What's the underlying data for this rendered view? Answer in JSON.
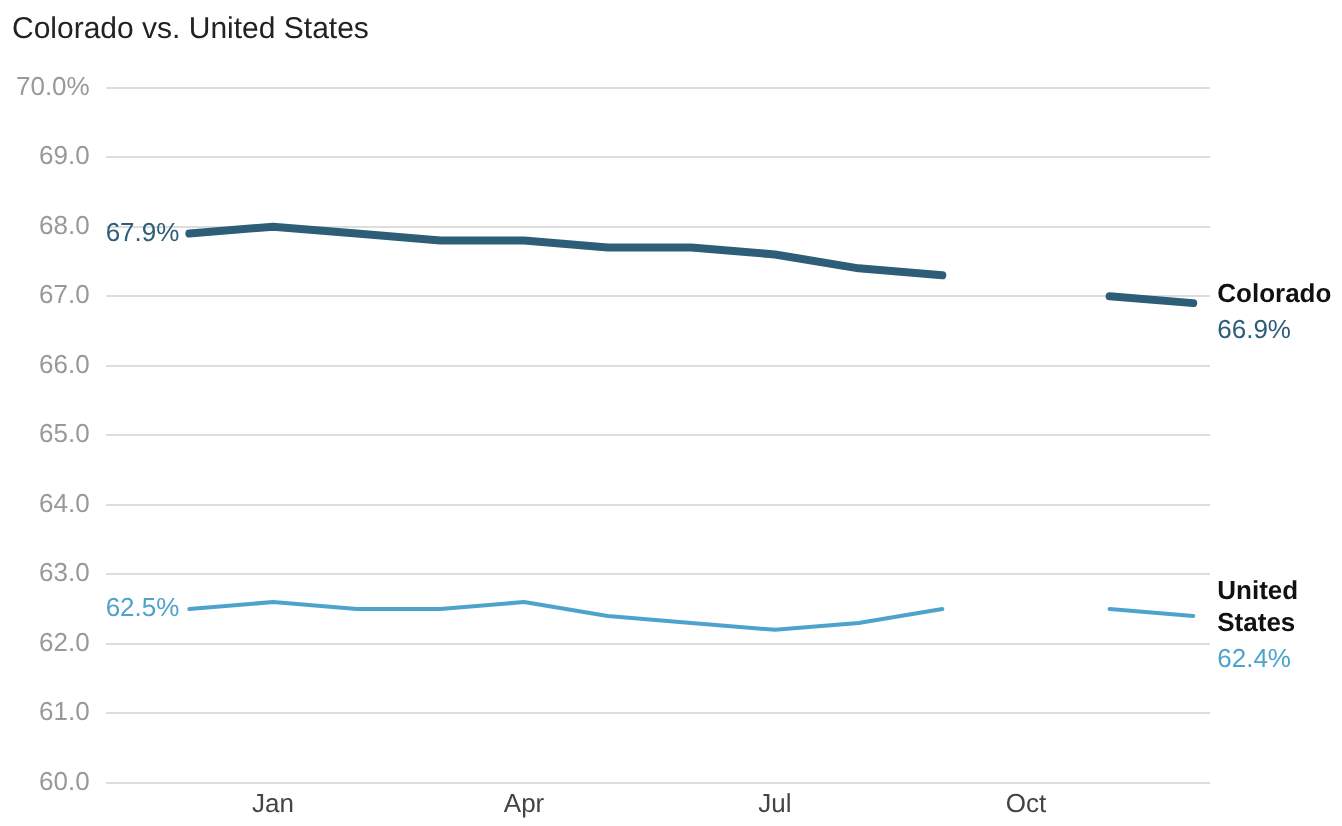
{
  "chart_data": {
    "type": "line",
    "title": "Colorado vs. United States",
    "categories": [
      null,
      "Jan",
      null,
      null,
      "Apr",
      null,
      null,
      "Jul",
      null,
      null,
      "Oct",
      null,
      null
    ],
    "series": [
      {
        "name": "Colorado",
        "color": "#2e5d78",
        "values": [
          67.9,
          68.0,
          67.9,
          67.8,
          67.8,
          67.7,
          67.7,
          67.6,
          67.4,
          67.3,
          null,
          67.0,
          66.9
        ],
        "value_labels": [
          "67.9%",
          null,
          null,
          null,
          null,
          null,
          null,
          null,
          null,
          null,
          null,
          null,
          "66.9%"
        ]
      },
      {
        "name": "United States",
        "color": "#4ea3cc",
        "values": [
          62.5,
          62.6,
          62.5,
          62.5,
          62.6,
          62.4,
          62.3,
          62.2,
          62.3,
          62.5,
          null,
          62.5,
          62.4
        ],
        "value_labels": [
          "62.5%",
          null,
          null,
          null,
          null,
          null,
          null,
          null,
          null,
          null,
          null,
          null,
          "62.4%"
        ]
      }
    ],
    "ylim": [
      60,
      70
    ],
    "yticks": [
      {
        "value": 60,
        "label": "60.0"
      },
      {
        "value": 61,
        "label": "61.0"
      },
      {
        "value": 62,
        "label": "62.0"
      },
      {
        "value": 63,
        "label": "63.0"
      },
      {
        "value": 64,
        "label": "64.0"
      },
      {
        "value": 65,
        "label": "65.0"
      },
      {
        "value": 66,
        "label": "66.0"
      },
      {
        "value": 67,
        "label": "67.0"
      },
      {
        "value": 68,
        "label": "68.0"
      },
      {
        "value": 69,
        "label": "69.0"
      },
      {
        "value": 70,
        "label": "70.0%"
      }
    ],
    "grid": "y",
    "legend": false,
    "marker": "none",
    "line_style": "solid"
  }
}
